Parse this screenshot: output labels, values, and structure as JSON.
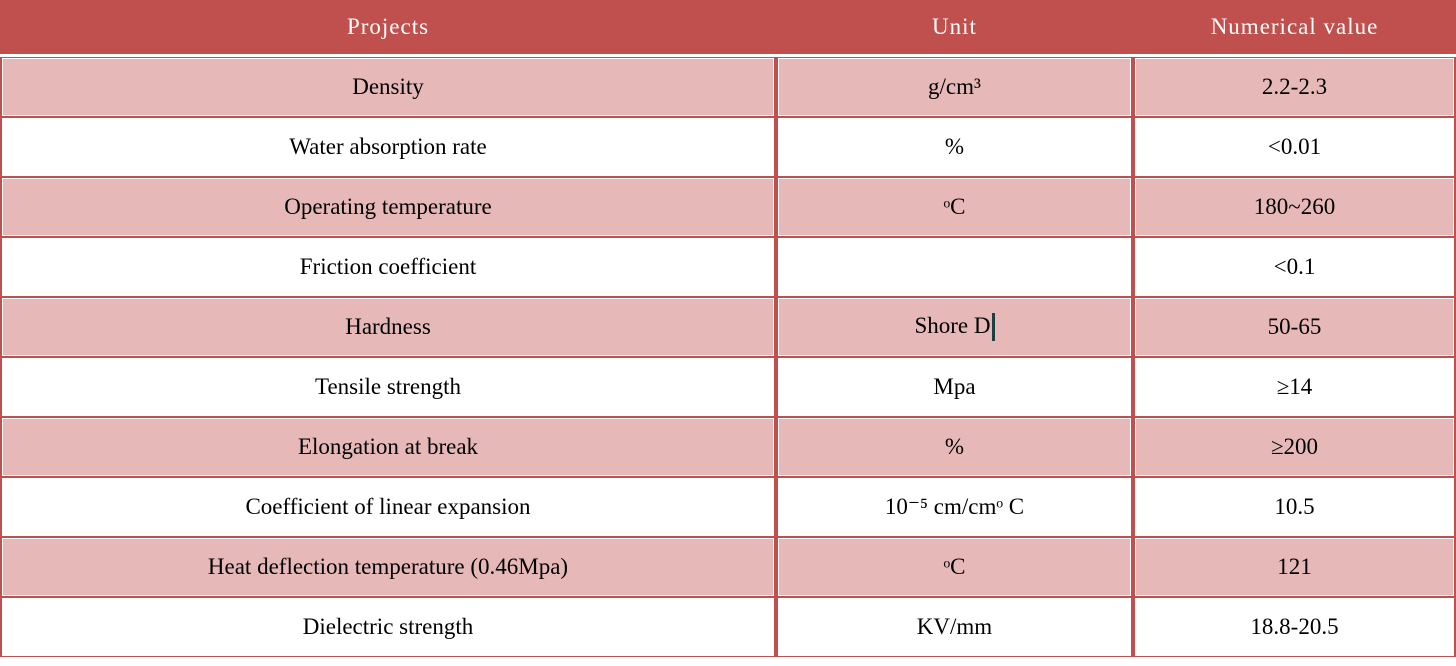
{
  "table": {
    "header": [
      "Projects",
      "Unit",
      "Numerical value"
    ],
    "rows": [
      [
        "Density",
        "g/cm³",
        "2.2-2.3"
      ],
      [
        "Water absorption rate",
        "%",
        "<0.01"
      ],
      [
        "Operating temperature",
        "ᵒC",
        "180~260"
      ],
      [
        "Friction coefficient",
        null,
        "<0.1"
      ],
      [
        "Hardness",
        "Shore D",
        "50-65"
      ],
      [
        "Tensile strength",
        "Mpa",
        "≥14"
      ],
      [
        "Elongation at break",
        "%",
        "≥200"
      ],
      [
        "Coefficient of linear expansion",
        "10⁻⁵ cm/cmᵒ C",
        "10.5"
      ],
      [
        "Heat deflection temperature (0.46Mpa)",
        "ᵒC",
        "121"
      ],
      [
        "Dielectric strength",
        "KV/mm",
        "18.8-20.5"
      ]
    ]
  }
}
